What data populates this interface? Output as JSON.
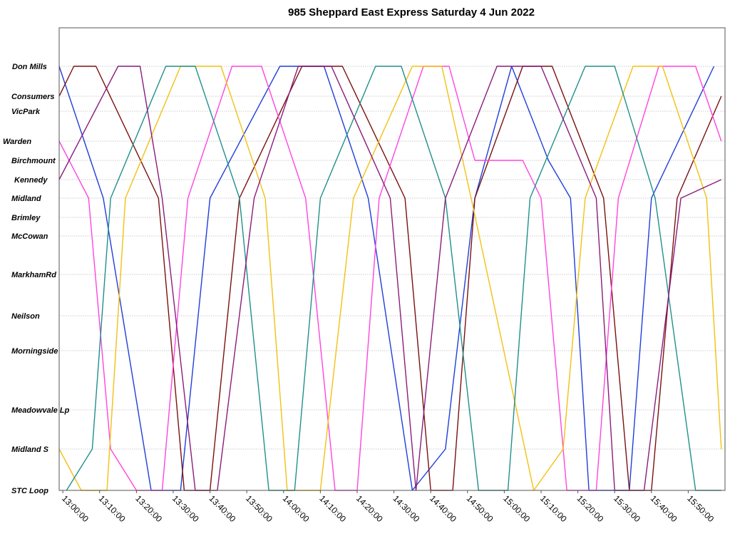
{
  "chart_data": {
    "type": "line",
    "title": "985 Sheppard East Express Saturday 4 Jun 2022",
    "xlabel": "",
    "ylabel": "",
    "x_range": [
      "13:00:00",
      "15:59:00"
    ],
    "x_ticks": [
      "13:00:00",
      "13:10:00",
      "13:20:00",
      "13:30:00",
      "13:40:00",
      "13:50:00",
      "14:00:00",
      "14:10:00",
      "14:20:00",
      "14:30:00",
      "14:40:00",
      "14:50:00",
      "15:00:00",
      "15:10:00",
      "15:20:00",
      "15:30:00",
      "15:40:00",
      "15:50:00"
    ],
    "stops": [
      "Don Mills",
      "Consumers",
      "VicPark",
      "Warden",
      "Birchmount",
      "Kennedy",
      "Midland",
      "Brimley",
      "McCowan",
      "MarkhamRd",
      "Neilson",
      "Morningside",
      "Meadowvale Lp",
      "Midland S",
      "STC Loop"
    ],
    "grid": true,
    "legend": "none",
    "vehicle_colors": [
      "#1f3fd8",
      "#7a1010",
      "#ff44e0",
      "#f3c012",
      "#20908a",
      "#8a1c7c"
    ],
    "series": [
      {
        "color_index": 0,
        "points": [
          [
            "12:59",
            "Don Mills"
          ],
          [
            "13:11",
            "Midland"
          ],
          [
            "13:24",
            "STC Loop"
          ],
          [
            "13:32",
            "STC Loop"
          ],
          [
            "13:40",
            "Midland"
          ],
          [
            "13:59",
            "Don Mills"
          ],
          [
            "14:11",
            "Don Mills"
          ],
          [
            "14:23",
            "Midland"
          ],
          [
            "14:35",
            "STC Loop"
          ],
          [
            "14:44",
            "Midland S"
          ],
          [
            "14:52",
            "Midland"
          ],
          [
            "15:02",
            "Don Mills"
          ],
          [
            "15:12",
            "Birchmount"
          ],
          [
            "15:18",
            "Midland"
          ],
          [
            "15:23",
            "STC Loop"
          ],
          [
            "15:34",
            "STC Loop"
          ],
          [
            "15:40",
            "Midland"
          ],
          [
            "15:57",
            "Don Mills"
          ]
        ]
      },
      {
        "color_index": 1,
        "points": [
          [
            "12:59",
            "Consumers"
          ],
          [
            "13:03",
            "Don Mills"
          ],
          [
            "13:09",
            "Don Mills"
          ],
          [
            "13:26",
            "Midland"
          ],
          [
            "13:33",
            "STC Loop"
          ],
          [
            "13:40",
            "STC Loop"
          ],
          [
            "13:48",
            "Midland"
          ],
          [
            "14:05",
            "Don Mills"
          ],
          [
            "14:16",
            "Don Mills"
          ],
          [
            "14:33",
            "Midland"
          ],
          [
            "14:40",
            "STC Loop"
          ],
          [
            "14:46",
            "STC Loop"
          ],
          [
            "14:52",
            "Midland"
          ],
          [
            "15:05",
            "Don Mills"
          ],
          [
            "15:13",
            "Don Mills"
          ],
          [
            "15:27",
            "Midland"
          ],
          [
            "15:34",
            "STC Loop"
          ],
          [
            "15:40",
            "STC Loop"
          ],
          [
            "15:47",
            "Midland"
          ],
          [
            "15:59",
            "Consumers"
          ]
        ]
      },
      {
        "color_index": 2,
        "points": [
          [
            "12:59",
            "Warden"
          ],
          [
            "13:07",
            "Midland"
          ],
          [
            "13:13",
            "Midland S"
          ],
          [
            "13:20",
            "STC Loop"
          ],
          [
            "13:27",
            "STC Loop"
          ],
          [
            "13:34",
            "Midland"
          ],
          [
            "13:46",
            "Don Mills"
          ],
          [
            "13:54",
            "Don Mills"
          ],
          [
            "14:06",
            "Midland"
          ],
          [
            "14:14",
            "STC Loop"
          ],
          [
            "14:20",
            "STC Loop"
          ],
          [
            "14:26",
            "Midland"
          ],
          [
            "14:38",
            "Don Mills"
          ],
          [
            "14:45",
            "Don Mills"
          ],
          [
            "14:52",
            "Birchmount"
          ],
          [
            "15:05",
            "Birchmount"
          ],
          [
            "15:10",
            "Midland"
          ],
          [
            "15:17",
            "STC Loop"
          ],
          [
            "15:25",
            "STC Loop"
          ],
          [
            "15:31",
            "Midland"
          ],
          [
            "15:42",
            "Don Mills"
          ],
          [
            "15:52",
            "Don Mills"
          ],
          [
            "15:59",
            "Warden"
          ]
        ]
      },
      {
        "color_index": 3,
        "points": [
          [
            "12:59",
            "Midland S"
          ],
          [
            "13:05",
            "STC Loop"
          ],
          [
            "13:12",
            "STC Loop"
          ],
          [
            "13:17",
            "Midland"
          ],
          [
            "13:32",
            "Don Mills"
          ],
          [
            "13:43",
            "Don Mills"
          ],
          [
            "13:55",
            "Midland"
          ],
          [
            "14:01",
            "STC Loop"
          ],
          [
            "14:10",
            "STC Loop"
          ],
          [
            "14:19",
            "Midland"
          ],
          [
            "14:35",
            "Don Mills"
          ],
          [
            "14:43",
            "Don Mills"
          ],
          [
            "14:51",
            "Midland"
          ],
          [
            "15:08",
            "STC Loop"
          ],
          [
            "15:16",
            "Midland S"
          ],
          [
            "15:22",
            "Midland"
          ],
          [
            "15:35",
            "Don Mills"
          ],
          [
            "15:43",
            "Don Mills"
          ],
          [
            "15:55",
            "Midland"
          ],
          [
            "15:59",
            "Midland S"
          ]
        ]
      },
      {
        "color_index": 4,
        "points": [
          [
            "13:01",
            "STC Loop"
          ],
          [
            "13:08",
            "Midland S"
          ],
          [
            "13:13",
            "Midland"
          ],
          [
            "13:28",
            "Don Mills"
          ],
          [
            "13:36",
            "Don Mills"
          ],
          [
            "13:48",
            "Midland"
          ],
          [
            "13:56",
            "STC Loop"
          ],
          [
            "14:03",
            "STC Loop"
          ],
          [
            "14:10",
            "Midland"
          ],
          [
            "14:25",
            "Don Mills"
          ],
          [
            "14:32",
            "Don Mills"
          ],
          [
            "14:44",
            "Midland"
          ],
          [
            "14:53",
            "STC Loop"
          ],
          [
            "15:01",
            "STC Loop"
          ],
          [
            "15:07",
            "Midland"
          ],
          [
            "15:22",
            "Don Mills"
          ],
          [
            "15:30",
            "Don Mills"
          ],
          [
            "15:41",
            "Midland"
          ],
          [
            "15:52",
            "STC Loop"
          ],
          [
            "15:59",
            "STC Loop"
          ]
        ]
      },
      {
        "color_index": 5,
        "points": [
          [
            "12:59",
            "Kennedy"
          ],
          [
            "13:15",
            "Don Mills"
          ],
          [
            "13:21",
            "Don Mills"
          ],
          [
            "13:27",
            "Midland"
          ],
          [
            "13:36",
            "STC Loop"
          ],
          [
            "13:42",
            "STC Loop"
          ],
          [
            "13:52",
            "Midland"
          ],
          [
            "14:04",
            "Don Mills"
          ],
          [
            "14:13",
            "Don Mills"
          ],
          [
            "14:29",
            "Midland"
          ],
          [
            "14:36",
            "STC Loop"
          ],
          [
            "14:44",
            "Midland"
          ],
          [
            "14:58",
            "Don Mills"
          ],
          [
            "15:10",
            "Don Mills"
          ],
          [
            "15:25",
            "Midland"
          ],
          [
            "15:30",
            "STC Loop"
          ],
          [
            "15:38",
            "STC Loop"
          ],
          [
            "15:48",
            "Midland"
          ],
          [
            "15:59",
            "Kennedy"
          ]
        ]
      }
    ]
  }
}
